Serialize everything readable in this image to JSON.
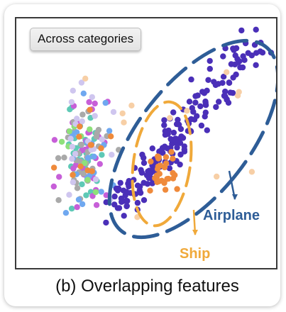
{
  "badge": {
    "label": "Across categories"
  },
  "annotations": {
    "airplane": "Airplane",
    "ship": "Ship"
  },
  "caption": "(b) Overlapping features",
  "colors": {
    "airplane": "#2e5d97",
    "ship": "#f0a93a",
    "purple_points": "#4a2fb8",
    "orange_points": "#ef8a3b",
    "magenta_points": "#c75fd8",
    "teal_points": "#5ec9b6",
    "blue_points": "#6fa8f0",
    "gray_points": "#a9a9a9",
    "green_points": "#8ee07a",
    "lavender_points": "#cfc6ef",
    "peach_points": "#f7cfa6"
  }
}
